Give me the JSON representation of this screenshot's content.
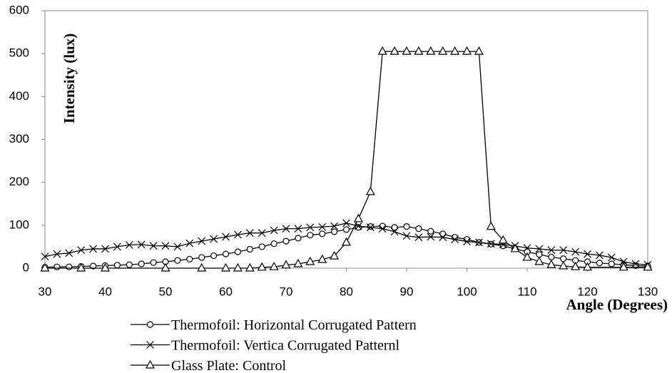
{
  "chart_data": {
    "type": "line",
    "x_label": "Angle (Degrees)",
    "y_label": "Intensity (lux)",
    "xlim": [
      30,
      130
    ],
    "xticks": [
      30,
      40,
      50,
      60,
      70,
      80,
      90,
      100,
      110,
      120,
      130
    ],
    "ylim": [
      0,
      600
    ],
    "yticks": [
      0,
      100,
      200,
      300,
      400,
      500,
      600
    ],
    "grid": false,
    "legend": "bottom",
    "series": [
      {
        "name": "Thermofoil: Horizontal Corrugated Pattern",
        "color": "#000000",
        "marker": "circle",
        "x": [
          30,
          32,
          34,
          36,
          38,
          40,
          42,
          44,
          46,
          48,
          50,
          52,
          54,
          56,
          58,
          60,
          62,
          64,
          66,
          68,
          70,
          72,
          74,
          76,
          78,
          80,
          82,
          84,
          86,
          88,
          90,
          92,
          94,
          96,
          98,
          100,
          102,
          104,
          106,
          108,
          110,
          112,
          114,
          116,
          118,
          120,
          122,
          124,
          126,
          128,
          130
        ],
        "values": [
          2,
          3,
          3,
          4,
          5,
          6,
          7,
          8,
          10,
          13,
          15,
          18,
          21,
          25,
          29,
          33,
          38,
          44,
          50,
          57,
          63,
          70,
          77,
          80,
          85,
          90,
          95,
          97,
          98,
          95,
          97,
          92,
          86,
          80,
          72,
          67,
          60,
          56,
          52,
          45,
          38,
          32,
          26,
          22,
          18,
          15,
          12,
          10,
          8,
          6,
          5
        ]
      },
      {
        "name": "Thermofoil: Vertica Corrugated Patternl",
        "color": "#000000",
        "marker": "cross",
        "x": [
          30,
          32,
          34,
          36,
          38,
          40,
          42,
          44,
          46,
          48,
          50,
          52,
          54,
          56,
          58,
          60,
          62,
          64,
          66,
          68,
          70,
          72,
          74,
          76,
          78,
          80,
          82,
          84,
          86,
          88,
          90,
          92,
          94,
          96,
          98,
          100,
          102,
          104,
          106,
          108,
          110,
          112,
          114,
          116,
          118,
          120,
          122,
          124,
          126,
          128,
          130
        ],
        "values": [
          27,
          33,
          35,
          42,
          45,
          45,
          50,
          54,
          55,
          52,
          52,
          50,
          58,
          63,
          68,
          73,
          78,
          82,
          82,
          88,
          92,
          92,
          95,
          96,
          98,
          105,
          98,
          95,
          92,
          85,
          75,
          72,
          73,
          72,
          67,
          62,
          60,
          57,
          55,
          52,
          47,
          45,
          42,
          42,
          38,
          33,
          30,
          25,
          15,
          10,
          8
        ]
      },
      {
        "name": "Glass Plate: Control",
        "color": "#000000",
        "marker": "triangle",
        "x": [
          30,
          36,
          40,
          50,
          56,
          60,
          62,
          64,
          66,
          68,
          70,
          72,
          74,
          76,
          78,
          80,
          82,
          84,
          86,
          88,
          90,
          92,
          94,
          96,
          98,
          100,
          102,
          104,
          106,
          108,
          110,
          112,
          114,
          116,
          118,
          120,
          126,
          130
        ],
        "values": [
          0,
          0,
          0,
          0,
          0,
          0,
          0,
          0,
          2,
          3,
          7,
          10,
          15,
          20,
          28,
          60,
          115,
          178,
          505,
          505,
          505,
          505,
          505,
          505,
          505,
          505,
          505,
          97,
          65,
          45,
          25,
          15,
          8,
          5,
          3,
          2,
          2,
          2
        ]
      }
    ]
  }
}
